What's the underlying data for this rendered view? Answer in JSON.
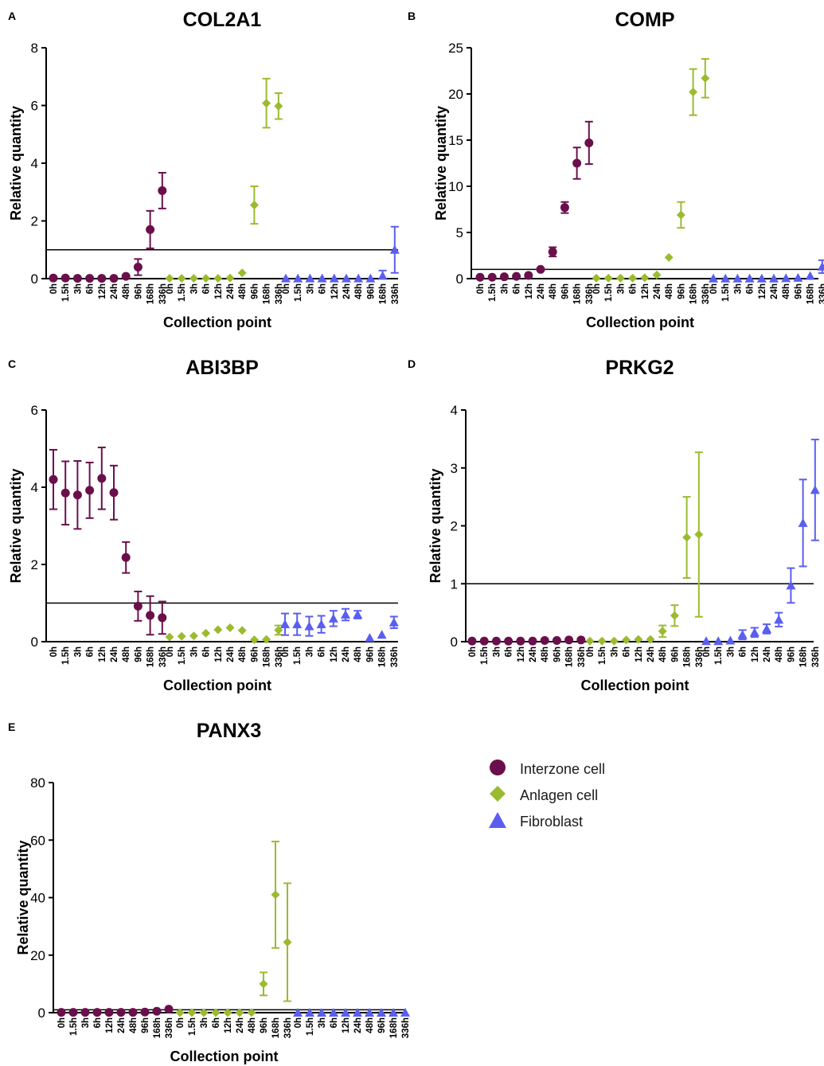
{
  "figure": {
    "categories": [
      "0h",
      "1.5h",
      "3h",
      "6h",
      "12h",
      "24h",
      "48h",
      "96h",
      "168h",
      "336h"
    ],
    "colors": {
      "interzone": "#6b0f4c",
      "anlagen": "#9bbb2e",
      "fibroblast": "#5a5ef0"
    },
    "legend": [
      {
        "name": "Interzone cell",
        "shape": "circle",
        "color": "#6b0f4c"
      },
      {
        "name": "Anlagen cell",
        "shape": "diamond",
        "color": "#9bbb2e"
      },
      {
        "name": "Fibroblast",
        "shape": "triangle",
        "color": "#5a5ef0"
      }
    ]
  },
  "chart_data": [
    {
      "panel": "A",
      "title": "COL2A1",
      "type": "scatter",
      "ylabel": "Relative quantity",
      "xlabel": "Collection point",
      "ylim": [
        0,
        8
      ],
      "yticks": [
        "0",
        "2",
        "4",
        "6",
        "8"
      ],
      "reference_line": 1,
      "series": [
        {
          "name": "Interzone cell",
          "values": [
            0.02,
            0.02,
            0.01,
            0.01,
            0.01,
            0.01,
            0.08,
            0.4,
            1.7,
            3.05
          ],
          "errors": [
            0.01,
            0.01,
            0.01,
            0.01,
            0.01,
            0.01,
            0.05,
            0.28,
            0.65,
            0.62
          ]
        },
        {
          "name": "Anlagen cell",
          "values": [
            0.01,
            0.01,
            0.01,
            0.01,
            0.01,
            0.02,
            0.2,
            2.55,
            6.08,
            5.98
          ],
          "errors": [
            0.01,
            0.01,
            0.01,
            0.01,
            0.01,
            0.01,
            0.1,
            0.65,
            0.85,
            0.45
          ]
        },
        {
          "name": "Fibroblast",
          "values": [
            0.01,
            0.01,
            0.01,
            0.01,
            0.01,
            0.01,
            0.01,
            0.01,
            0.1,
            1.0
          ],
          "errors": [
            0.01,
            0.01,
            0.01,
            0.01,
            0.01,
            0.01,
            0.01,
            0.01,
            0.18,
            0.8
          ]
        }
      ]
    },
    {
      "panel": "B",
      "title": "COMP",
      "type": "scatter",
      "ylabel": "Relative quantity",
      "xlabel": "Collection point",
      "ylim": [
        0,
        25
      ],
      "yticks": [
        "0",
        "5",
        "10",
        "15",
        "20",
        "25"
      ],
      "reference_line": 1,
      "series": [
        {
          "name": "Interzone cell",
          "values": [
            0.15,
            0.15,
            0.2,
            0.25,
            0.35,
            1.0,
            2.9,
            7.7,
            12.5,
            14.7
          ],
          "errors": [
            0.05,
            0.05,
            0.05,
            0.05,
            0.1,
            0.2,
            0.5,
            0.6,
            1.7,
            2.3
          ]
        },
        {
          "name": "Anlagen cell",
          "values": [
            0.05,
            0.05,
            0.05,
            0.05,
            0.1,
            0.4,
            2.3,
            6.9,
            20.2,
            21.7
          ],
          "errors": [
            0.02,
            0.02,
            0.02,
            0.02,
            0.05,
            0.15,
            0.3,
            1.4,
            2.5,
            2.1
          ]
        },
        {
          "name": "Fibroblast",
          "values": [
            0.02,
            0.02,
            0.02,
            0.02,
            0.02,
            0.02,
            0.05,
            0.1,
            0.3,
            1.3
          ],
          "errors": [
            0.01,
            0.01,
            0.01,
            0.01,
            0.01,
            0.01,
            0.02,
            0.05,
            0.15,
            0.7
          ]
        }
      ]
    },
    {
      "panel": "C",
      "title": "ABI3BP",
      "type": "scatter",
      "ylabel": "Relative quantity",
      "xlabel": "Collection point",
      "ylim": [
        0,
        6
      ],
      "yticks": [
        "0",
        "2",
        "4",
        "6"
      ],
      "reference_line": 1,
      "series": [
        {
          "name": "Interzone cell",
          "values": [
            4.2,
            3.85,
            3.8,
            3.92,
            4.23,
            3.86,
            2.18,
            0.92,
            0.68,
            0.62
          ],
          "errors": [
            0.77,
            0.82,
            0.88,
            0.72,
            0.8,
            0.7,
            0.4,
            0.38,
            0.5,
            0.42
          ]
        },
        {
          "name": "Anlagen cell",
          "values": [
            0.12,
            0.14,
            0.15,
            0.22,
            0.31,
            0.36,
            0.29,
            0.05,
            0.06,
            0.3
          ],
          "errors": [
            0.05,
            0.05,
            0.05,
            0.06,
            0.08,
            0.08,
            0.08,
            0.05,
            0.05,
            0.12
          ]
        },
        {
          "name": "Fibroblast",
          "values": [
            0.45,
            0.45,
            0.4,
            0.45,
            0.6,
            0.7,
            0.7,
            0.1,
            0.18,
            0.5
          ],
          "errors": [
            0.28,
            0.28,
            0.25,
            0.22,
            0.2,
            0.15,
            0.1,
            0.05,
            0.08,
            0.15
          ]
        }
      ]
    },
    {
      "panel": "D",
      "title": "PRKG2",
      "type": "scatter",
      "ylabel": "Relative quantity",
      "xlabel": "Collection point",
      "ylim": [
        0,
        4
      ],
      "yticks": [
        "0",
        "1",
        "2",
        "3",
        "4"
      ],
      "reference_line": 1,
      "series": [
        {
          "name": "Interzone cell",
          "values": [
            0.01,
            0.01,
            0.01,
            0.01,
            0.01,
            0.01,
            0.02,
            0.02,
            0.03,
            0.03
          ],
          "errors": [
            0.005,
            0.005,
            0.005,
            0.005,
            0.005,
            0.005,
            0.01,
            0.01,
            0.01,
            0.01
          ]
        },
        {
          "name": "Anlagen cell",
          "values": [
            0.01,
            0.01,
            0.01,
            0.03,
            0.04,
            0.04,
            0.18,
            0.45,
            1.8,
            1.85
          ],
          "errors": [
            0.005,
            0.005,
            0.005,
            0.01,
            0.02,
            0.02,
            0.1,
            0.18,
            0.7,
            1.42
          ]
        },
        {
          "name": "Fibroblast",
          "values": [
            0.01,
            0.01,
            0.02,
            0.12,
            0.16,
            0.22,
            0.38,
            0.97,
            2.05,
            2.62
          ],
          "errors": [
            0.01,
            0.01,
            0.02,
            0.08,
            0.08,
            0.08,
            0.12,
            0.3,
            0.75,
            0.87
          ]
        }
      ]
    },
    {
      "panel": "E",
      "title": "PANX3",
      "type": "scatter",
      "ylabel": "Relative quantity",
      "xlabel": "Collection point",
      "ylim": [
        0,
        80
      ],
      "yticks": [
        "0",
        "20",
        "40",
        "60",
        "80"
      ],
      "reference_line": 1,
      "series": [
        {
          "name": "Interzone cell",
          "values": [
            0.1,
            0.1,
            0.1,
            0.1,
            0.1,
            0.1,
            0.1,
            0.2,
            0.5,
            1.2
          ],
          "errors": [
            0.05,
            0.05,
            0.05,
            0.05,
            0.05,
            0.05,
            0.05,
            0.1,
            0.2,
            0.4
          ]
        },
        {
          "name": "Anlagen cell",
          "values": [
            0.01,
            0.01,
            0.01,
            0.01,
            0.01,
            0.01,
            0.05,
            10.0,
            41.0,
            24.5
          ],
          "errors": [
            0.01,
            0.01,
            0.01,
            0.01,
            0.01,
            0.01,
            0.02,
            4.0,
            18.5,
            20.5
          ]
        },
        {
          "name": "Fibroblast",
          "values": [
            0.01,
            0.01,
            0.01,
            0.01,
            0.01,
            0.01,
            0.01,
            0.01,
            0.01,
            0.02
          ],
          "errors": [
            0.005,
            0.005,
            0.005,
            0.005,
            0.005,
            0.005,
            0.005,
            0.005,
            0.005,
            0.01
          ]
        }
      ]
    }
  ]
}
